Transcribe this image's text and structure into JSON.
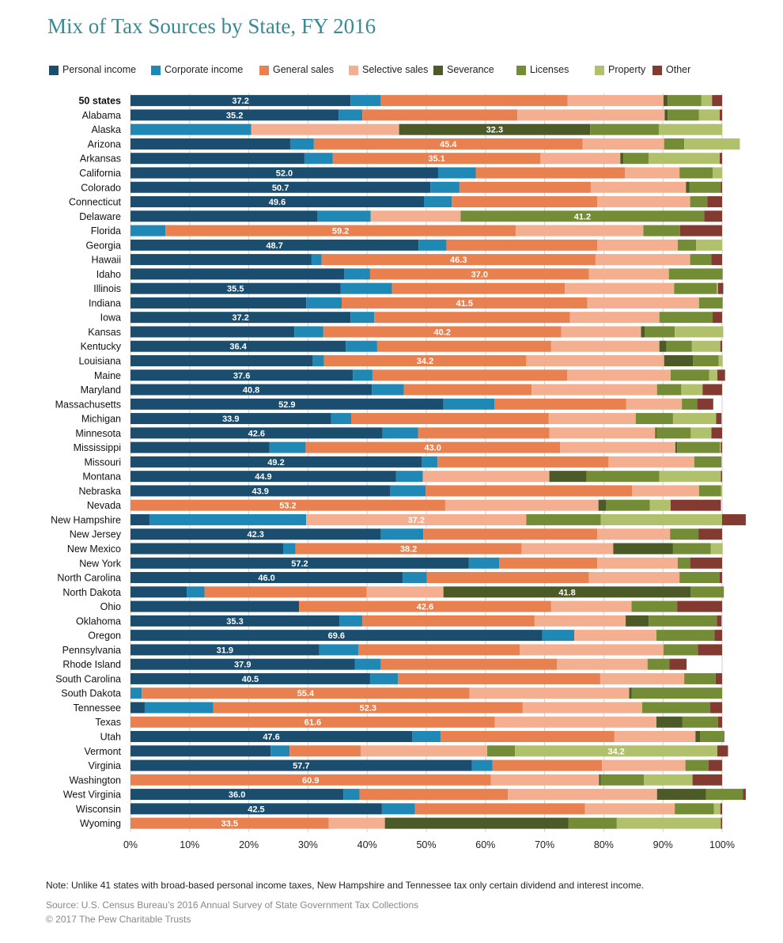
{
  "title": "Mix of Tax Sources by State, FY 2016",
  "note": "Note: Unlike 41 states with broad-based personal income taxes, New Hampshire and Tennessee tax only certain dividend and interest income.",
  "source": "Source: U.S. Census Bureau’s 2016 Annual Survey of State Government Tax Collections",
  "copyright": "© 2017 The Pew Charitable Trusts",
  "chart_data": {
    "type": "bar",
    "orientation": "horizontal",
    "stacked": true,
    "title": "Mix of Tax Sources by State, FY 2016",
    "xlabel": "",
    "ylabel": "",
    "xlim": [
      0,
      100
    ],
    "x_ticks": [
      "0%",
      "10%",
      "20%",
      "30%",
      "40%",
      "50%",
      "60%",
      "70%",
      "80%",
      "90%",
      "100%"
    ],
    "legend_position": "top",
    "grid": true,
    "categories": [
      "50 states",
      "Alabama",
      "Alaska",
      "Arizona",
      "Arkansas",
      "California",
      "Colorado",
      "Connecticut",
      "Delaware",
      "Florida",
      "Georgia",
      "Hawaii",
      "Idaho",
      "Illinois",
      "Indiana",
      "Iowa",
      "Kansas",
      "Kentucky",
      "Louisiana",
      "Maine",
      "Maryland",
      "Massachusetts",
      "Michigan",
      "Minnesota",
      "Mississippi",
      "Missouri",
      "Montana",
      "Nebraska",
      "Nevada",
      "New Hampshire",
      "New Jersey",
      "New Mexico",
      "New York",
      "North Carolina",
      "North Dakota",
      "Ohio",
      "Oklahoma",
      "Oregon",
      "Pennsylvania",
      "Rhode Island",
      "South Carolina",
      "South Dakota",
      "Tennessee",
      "Texas",
      "Utah",
      "Vermont",
      "Virginia",
      "Washington",
      "West Virginia",
      "Wisconsin",
      "Wyoming"
    ],
    "bold_categories": [
      "50 states"
    ],
    "series": [
      {
        "name": "Personal income",
        "color": "#1a4d6e",
        "values": [
          37.2,
          35.2,
          0,
          27.0,
          29.4,
          52.0,
          50.7,
          49.6,
          31.6,
          0,
          48.7,
          30.6,
          36.1,
          35.5,
          29.7,
          37.2,
          27.7,
          36.4,
          30.8,
          37.6,
          40.8,
          52.9,
          33.9,
          42.6,
          23.5,
          49.2,
          44.9,
          43.9,
          0,
          3.2,
          42.3,
          25.8,
          57.2,
          46.0,
          9.5,
          28.5,
          35.3,
          69.6,
          31.9,
          37.9,
          40.5,
          0,
          2.4,
          0,
          47.6,
          23.7,
          57.7,
          0,
          36.0,
          42.5,
          0
        ]
      },
      {
        "name": "Corporate income",
        "color": "#1f88b5",
        "values": [
          5.1,
          4.0,
          20.4,
          4.0,
          4.8,
          6.4,
          4.9,
          4.7,
          9.0,
          5.9,
          4.7,
          1.7,
          4.4,
          8.7,
          6.0,
          4.0,
          4.9,
          5.3,
          1.9,
          3.3,
          5.4,
          8.6,
          3.4,
          6.0,
          6.1,
          2.7,
          4.5,
          6.0,
          0,
          26.5,
          7.2,
          2.1,
          5.1,
          4.1,
          3.0,
          0,
          3.9,
          5.4,
          6.6,
          4.4,
          4.7,
          1.9,
          11.6,
          0,
          4.8,
          3.2,
          3.5,
          0,
          2.7,
          5.6,
          0
        ]
      },
      {
        "name": "General sales",
        "color": "#e8804f",
        "values": [
          31.6,
          26.2,
          0,
          45.4,
          35.1,
          25.2,
          22.2,
          24.6,
          0,
          59.2,
          25.5,
          46.3,
          37.0,
          29.2,
          41.5,
          33.1,
          40.2,
          29.4,
          34.2,
          32.9,
          21.6,
          22.3,
          33.4,
          22.2,
          43.0,
          28.9,
          0,
          34.9,
          53.2,
          0,
          29.4,
          38.2,
          16.6,
          27.4,
          27.4,
          42.6,
          29.1,
          0,
          27.3,
          29.8,
          34.2,
          55.4,
          52.3,
          61.6,
          29.4,
          12.0,
          18.5,
          60.9,
          25.1,
          28.7,
          33.5
        ]
      },
      {
        "name": "Selective sales",
        "color": "#f4ae90",
        "values": [
          16.2,
          24.9,
          25.0,
          13.8,
          13.5,
          9.2,
          16.1,
          15.7,
          15.2,
          21.6,
          13.6,
          16.0,
          13.5,
          18.5,
          18.9,
          15.1,
          13.5,
          18.3,
          23.3,
          17.5,
          21.2,
          9.4,
          14.7,
          17.9,
          19.5,
          14.5,
          21.4,
          11.3,
          25.9,
          37.2,
          12.3,
          15.5,
          13.6,
          15.3,
          13.0,
          13.6,
          15.4,
          13.9,
          24.3,
          15.3,
          14.2,
          27.0,
          20.2,
          27.3,
          13.7,
          21.4,
          14.1,
          18.3,
          25.2,
          15.2,
          9.5
        ]
      },
      {
        "name": "Severance",
        "color": "#4b5a26",
        "values": [
          0.7,
          0.5,
          32.3,
          0,
          0.5,
          0,
          0.6,
          0,
          0,
          0,
          0,
          0,
          0,
          0,
          0,
          0,
          0.6,
          1.2,
          4.9,
          0,
          0,
          0,
          0,
          0.2,
          0.3,
          0,
          6.3,
          0,
          1.3,
          0,
          0,
          10.1,
          0,
          0,
          41.8,
          0,
          3.9,
          0,
          0,
          0,
          0,
          0.4,
          0,
          4.4,
          0.8,
          0,
          0,
          0.3,
          8.3,
          0,
          31.0
        ]
      },
      {
        "name": "Licenses",
        "color": "#738c35",
        "values": [
          5.7,
          5.3,
          11.6,
          3.4,
          4.3,
          5.6,
          5.3,
          2.9,
          41.2,
          6.2,
          3.1,
          3.6,
          9.1,
          7.2,
          4.0,
          9.0,
          5.1,
          4.3,
          4.3,
          6.5,
          4.1,
          2.6,
          6.3,
          5.8,
          7.2,
          4.6,
          12.3,
          3.7,
          7.4,
          12.6,
          4.8,
          6.4,
          2.1,
          6.8,
          5.6,
          7.7,
          11.5,
          9.8,
          5.8,
          3.7,
          5.3,
          15.3,
          11.5,
          6.0,
          4.1,
          4.7,
          3.9,
          7.3,
          6.2,
          6.6,
          8.2
        ]
      },
      {
        "name": "Property",
        "color": "#b1c06a",
        "values": [
          1.8,
          3.5,
          10.7,
          9.4,
          12.0,
          1.6,
          0,
          0,
          0,
          0,
          4.4,
          0,
          0,
          0.2,
          0,
          0,
          8.2,
          4.8,
          0.7,
          1.4,
          3.6,
          0,
          7.3,
          3.5,
          0.2,
          0,
          10.4,
          0.2,
          3.5,
          20.5,
          0,
          2.0,
          0,
          0,
          0,
          0,
          0,
          0,
          0,
          0,
          0,
          0,
          0,
          0,
          0,
          34.2,
          0,
          8.2,
          0,
          1.1,
          17.6
        ]
      },
      {
        "name": "Other",
        "color": "#833b31",
        "values": [
          1.7,
          0.4,
          0,
          0,
          0.4,
          0,
          0.2,
          2.5,
          3.0,
          7.1,
          0,
          1.8,
          0,
          0.9,
          0,
          1.6,
          0,
          0.3,
          0,
          1.3,
          3.3,
          2.7,
          0.9,
          1.8,
          0.2,
          0,
          0.2,
          0,
          8.5,
          4.0,
          4.0,
          0,
          5.4,
          0.4,
          0,
          7.6,
          0.8,
          1.3,
          4.1,
          2.9,
          1.1,
          0,
          2.0,
          0.7,
          0,
          1.8,
          2.3,
          5.0,
          0.5,
          0.3,
          0.2
        ]
      }
    ],
    "value_labels_series": "largest"
  }
}
